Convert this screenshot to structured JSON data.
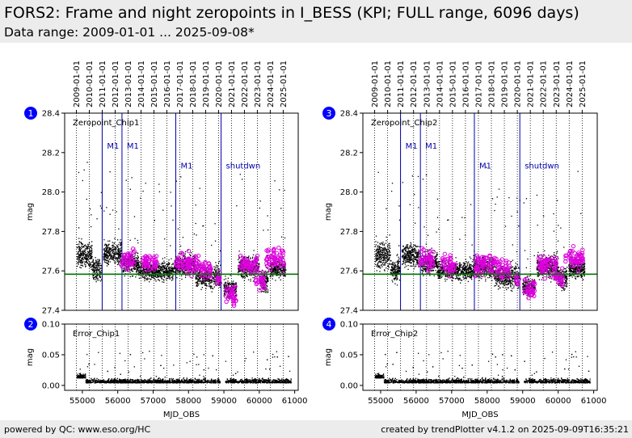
{
  "header": {
    "title": "FORS2: Frame and night zeropoints in I_BESS (KPI; FULL range, 6096 days)",
    "subtitle": "Data range: 2009-01-01 ... 2025-09-08*"
  },
  "footer": {
    "left": "powered by QC: www.eso.org/HC",
    "right": "created by trendPlotter v4.1.2 on 2025-09-09T16:35:21"
  },
  "colors": {
    "data": "#000000",
    "highlight": "#dd00dd",
    "reference": "#007700",
    "event": "#0000aa",
    "badge": "#0000ff"
  },
  "chart_data": [
    {
      "type": "scatter",
      "badge": "1",
      "label": "Zeropoint_Chip1",
      "xlabel": "",
      "ylabel": "mag",
      "xlim": [
        54500,
        61100
      ],
      "ylim": [
        27.4,
        28.4
      ],
      "yticks": [
        27.4,
        27.6,
        27.8,
        28.0,
        28.2,
        28.4
      ],
      "yticklabels": [
        "27.4",
        "27.6",
        "27.8",
        "28.0",
        "28.2",
        "28.4"
      ],
      "reference_line": 27.583,
      "events": [
        {
          "x": 55560,
          "label": "M1"
        },
        {
          "x": 56120,
          "label": "M1"
        },
        {
          "x": 57640,
          "label": "M1"
        },
        {
          "x": 58920,
          "label": "shutdwn"
        }
      ],
      "series": [
        {
          "role": "frame",
          "segments": [
            [
              54850,
              55280,
              27.68,
              0.06
            ],
            [
              55280,
              55540,
              27.6,
              0.05
            ],
            [
              55600,
              56100,
              27.69,
              0.05
            ],
            [
              56150,
              56600,
              27.64,
              0.05
            ],
            [
              56600,
              57580,
              27.6,
              0.04
            ],
            [
              57600,
              58200,
              27.63,
              0.05
            ],
            [
              58200,
              58900,
              27.57,
              0.05
            ],
            [
              59000,
              59350,
              27.51,
              0.04
            ],
            [
              59400,
              60000,
              27.62,
              0.05
            ],
            [
              60000,
              60250,
              27.55,
              0.05
            ],
            [
              60300,
              60750,
              27.61,
              0.04
            ]
          ]
        },
        {
          "role": "night",
          "segments": [
            [
              56100,
              56500,
              27.66,
              0.03
            ],
            [
              56700,
              57100,
              27.64,
              0.03
            ],
            [
              57650,
              58300,
              27.64,
              0.03
            ],
            [
              58300,
              58650,
              27.61,
              0.03
            ],
            [
              58800,
              58900,
              27.56,
              0.02
            ],
            [
              59050,
              59350,
              27.48,
              0.03
            ],
            [
              59450,
              59950,
              27.63,
              0.03
            ],
            [
              59900,
              60150,
              27.56,
              0.03
            ],
            [
              60200,
              60700,
              27.66,
              0.03
            ]
          ]
        }
      ]
    },
    {
      "type": "scatter",
      "badge": "2",
      "label": "Error_Chip1",
      "xlabel": "MJD_OBS",
      "ylabel": "mag",
      "xlim": [
        54500,
        61100
      ],
      "ylim": [
        -0.008,
        0.1
      ],
      "yticks": [
        0,
        0.05,
        0.1
      ],
      "yticklabels": [
        "0.00",
        "0.05",
        "0.10"
      ],
      "xticks": [
        55000,
        56000,
        57000,
        58000,
        59000,
        60000,
        61000
      ],
      "xticklabels": [
        "55000",
        "56000",
        "57000",
        "58000",
        "59000",
        "60000",
        "61000"
      ]
    },
    {
      "type": "scatter",
      "badge": "3",
      "label": "Zeropoint_Chip2",
      "xlabel": "",
      "ylabel": "mag",
      "xlim": [
        54500,
        61100
      ],
      "ylim": [
        27.4,
        28.4
      ],
      "yticks": [
        27.4,
        27.6,
        27.8,
        28.0,
        28.2,
        28.4
      ],
      "yticklabels": [
        "27.4",
        "27.6",
        "27.8",
        "28.0",
        "28.2",
        "28.4"
      ],
      "reference_line": 27.583,
      "events": [
        {
          "x": 55560,
          "label": "M1"
        },
        {
          "x": 56120,
          "label": "M1"
        },
        {
          "x": 57640,
          "label": "M1"
        },
        {
          "x": 58920,
          "label": "shutdwn"
        }
      ],
      "series": [
        {
          "role": "frame",
          "segments": [
            [
              54850,
              55280,
              27.68,
              0.06
            ],
            [
              55280,
              55540,
              27.6,
              0.05
            ],
            [
              55600,
              56100,
              27.68,
              0.05
            ],
            [
              56150,
              56600,
              27.64,
              0.05
            ],
            [
              56600,
              57580,
              27.6,
              0.04
            ],
            [
              57600,
              58200,
              27.62,
              0.05
            ],
            [
              58200,
              58900,
              27.57,
              0.05
            ],
            [
              59000,
              59350,
              27.52,
              0.04
            ],
            [
              59400,
              60000,
              27.62,
              0.05
            ],
            [
              60000,
              60250,
              27.56,
              0.05
            ],
            [
              60300,
              60750,
              27.61,
              0.04
            ]
          ]
        },
        {
          "role": "night",
          "segments": [
            [
              56100,
              56500,
              27.66,
              0.03
            ],
            [
              56700,
              57100,
              27.63,
              0.03
            ],
            [
              57650,
              58300,
              27.63,
              0.03
            ],
            [
              58300,
              58650,
              27.61,
              0.03
            ],
            [
              58800,
              58900,
              27.56,
              0.02
            ],
            [
              59050,
              59350,
              27.51,
              0.03
            ],
            [
              59450,
              59950,
              27.63,
              0.03
            ],
            [
              59900,
              60150,
              27.56,
              0.03
            ],
            [
              60200,
              60700,
              27.66,
              0.03
            ]
          ]
        }
      ]
    },
    {
      "type": "scatter",
      "badge": "4",
      "label": "Error_Chip2",
      "xlabel": "MJD_OBS",
      "ylabel": "mag",
      "xlim": [
        54500,
        61100
      ],
      "ylim": [
        -0.008,
        0.1
      ],
      "yticks": [
        0,
        0.05,
        0.1
      ],
      "yticklabels": [
        "0.00",
        "0.05",
        "0.10"
      ],
      "xticks": [
        55000,
        56000,
        57000,
        58000,
        59000,
        60000,
        61000
      ],
      "xticklabels": [
        "55000",
        "56000",
        "57000",
        "58000",
        "59000",
        "60000",
        "61000"
      ]
    }
  ],
  "date_axis": {
    "years": [
      {
        "label": "2009-01-01",
        "mjd": 54832
      },
      {
        "label": "2010-01-01",
        "mjd": 55197
      },
      {
        "label": "2011-01-01",
        "mjd": 55562
      },
      {
        "label": "2012-01-01",
        "mjd": 55927
      },
      {
        "label": "2013-01-01",
        "mjd": 56293
      },
      {
        "label": "2014-01-01",
        "mjd": 56658
      },
      {
        "label": "2015-01-01",
        "mjd": 57023
      },
      {
        "label": "2016-01-01",
        "mjd": 57388
      },
      {
        "label": "2017-01-01",
        "mjd": 57754
      },
      {
        "label": "2018-01-01",
        "mjd": 58119
      },
      {
        "label": "2019-01-01",
        "mjd": 58484
      },
      {
        "label": "2020-01-01",
        "mjd": 58849
      },
      {
        "label": "2021-01-01",
        "mjd": 59215
      },
      {
        "label": "2022-01-01",
        "mjd": 59580
      },
      {
        "label": "2023-01-01",
        "mjd": 59945
      },
      {
        "label": "2024-01-01",
        "mjd": 60310
      },
      {
        "label": "2025-01-01",
        "mjd": 60676
      }
    ]
  }
}
